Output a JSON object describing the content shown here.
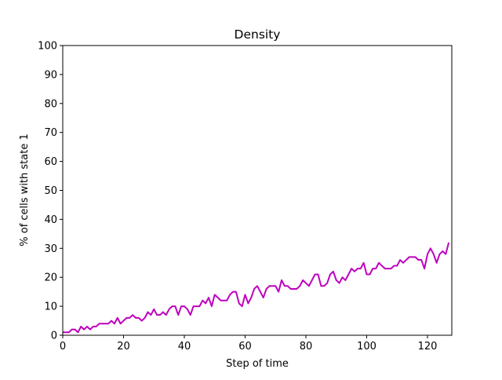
{
  "chart_data": {
    "type": "line",
    "title": "Density",
    "xlabel": "Step of time",
    "ylabel": "% of cells with state 1",
    "x": [
      0,
      1,
      2,
      3,
      4,
      5,
      6,
      7,
      8,
      9,
      10,
      11,
      12,
      13,
      14,
      15,
      16,
      17,
      18,
      19,
      20,
      21,
      22,
      23,
      24,
      25,
      26,
      27,
      28,
      29,
      30,
      31,
      32,
      33,
      34,
      35,
      36,
      37,
      38,
      39,
      40,
      41,
      42,
      43,
      44,
      45,
      46,
      47,
      48,
      49,
      50,
      51,
      52,
      53,
      54,
      55,
      56,
      57,
      58,
      59,
      60,
      61,
      62,
      63,
      64,
      65,
      66,
      67,
      68,
      69,
      70,
      71,
      72,
      73,
      74,
      75,
      76,
      77,
      78,
      79,
      80,
      81,
      82,
      83,
      84,
      85,
      86,
      87,
      88,
      89,
      90,
      91,
      92,
      93,
      94,
      95,
      96,
      97,
      98,
      99,
      100,
      101,
      102,
      103,
      104,
      105,
      106,
      107,
      108,
      109,
      110,
      111,
      112,
      113,
      114,
      115,
      116,
      117,
      118,
      119,
      120,
      121,
      122,
      123,
      124,
      125,
      126,
      127
    ],
    "series": [
      {
        "name": "density",
        "color": "#bf00bf",
        "values": [
          1,
          1,
          1,
          2,
          2,
          1,
          3,
          2,
          3,
          2,
          3,
          3,
          4,
          4,
          4,
          4,
          5,
          4,
          6,
          4,
          5,
          6,
          6,
          7,
          6,
          6,
          5,
          6,
          8,
          7,
          9,
          7,
          7,
          8,
          7,
          9,
          10,
          10,
          7,
          10,
          10,
          9,
          7,
          10,
          10,
          10,
          12,
          11,
          13,
          10,
          14,
          13,
          12,
          12,
          12,
          14,
          15,
          15,
          11,
          10,
          14,
          11,
          13,
          16,
          17,
          15,
          13,
          16,
          17,
          17,
          17,
          15,
          19,
          17,
          17,
          16,
          16,
          16,
          17,
          19,
          18,
          17,
          19,
          21,
          21,
          17,
          17,
          18,
          21,
          22,
          19,
          18,
          20,
          19,
          21,
          23,
          22,
          23,
          23,
          25,
          21,
          21,
          23,
          23,
          25,
          24,
          23,
          23,
          23,
          24,
          24,
          26,
          25,
          26,
          27,
          27,
          27,
          26,
          26,
          23,
          28,
          30,
          28,
          25,
          28,
          29,
          28,
          32
        ]
      }
    ],
    "xlim": [
      0,
      128
    ],
    "ylim": [
      0,
      100
    ],
    "xticks": [
      0,
      20,
      40,
      60,
      80,
      100,
      120
    ],
    "yticks": [
      0,
      10,
      20,
      30,
      40,
      50,
      60,
      70,
      80,
      90,
      100
    ]
  }
}
